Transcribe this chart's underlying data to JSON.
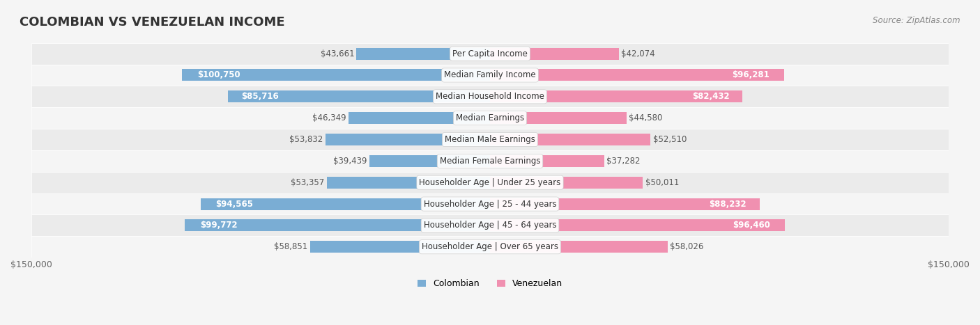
{
  "title": "COLOMBIAN VS VENEZUELAN INCOME",
  "source": "Source: ZipAtlas.com",
  "categories": [
    "Per Capita Income",
    "Median Family Income",
    "Median Household Income",
    "Median Earnings",
    "Median Male Earnings",
    "Median Female Earnings",
    "Householder Age | Under 25 years",
    "Householder Age | 25 - 44 years",
    "Householder Age | 45 - 64 years",
    "Householder Age | Over 65 years"
  ],
  "colombian_values": [
    43661,
    100750,
    85716,
    46349,
    53832,
    39439,
    53357,
    94565,
    99772,
    58851
  ],
  "venezuelan_values": [
    42074,
    96281,
    82432,
    44580,
    52510,
    37282,
    50011,
    88232,
    96460,
    58026
  ],
  "colombian_labels": [
    "$43,661",
    "$100,750",
    "$85,716",
    "$46,349",
    "$53,832",
    "$39,439",
    "$53,357",
    "$94,565",
    "$99,772",
    "$58,851"
  ],
  "venezuelan_labels": [
    "$42,074",
    "$96,281",
    "$82,432",
    "$44,580",
    "$52,510",
    "$37,282",
    "$50,011",
    "$88,232",
    "$96,460",
    "$58,026"
  ],
  "colombian_color": "#7aadd4",
  "venezuelan_color": "#f090b0",
  "colombian_dark_color": "#4a86c8",
  "venezuelan_dark_color": "#e8487a",
  "label_color_dark_col": "#3a70b8",
  "label_color_dark_ven": "#d83878",
  "axis_max": 150000,
  "bar_height": 0.55,
  "row_bg_color_even": "#f0f0f0",
  "row_bg_color_odd": "#e8e8e8",
  "background_color": "#f5f5f5",
  "title_fontsize": 13,
  "label_fontsize": 8.5,
  "category_fontsize": 8.5,
  "legend_fontsize": 9,
  "source_fontsize": 8.5
}
